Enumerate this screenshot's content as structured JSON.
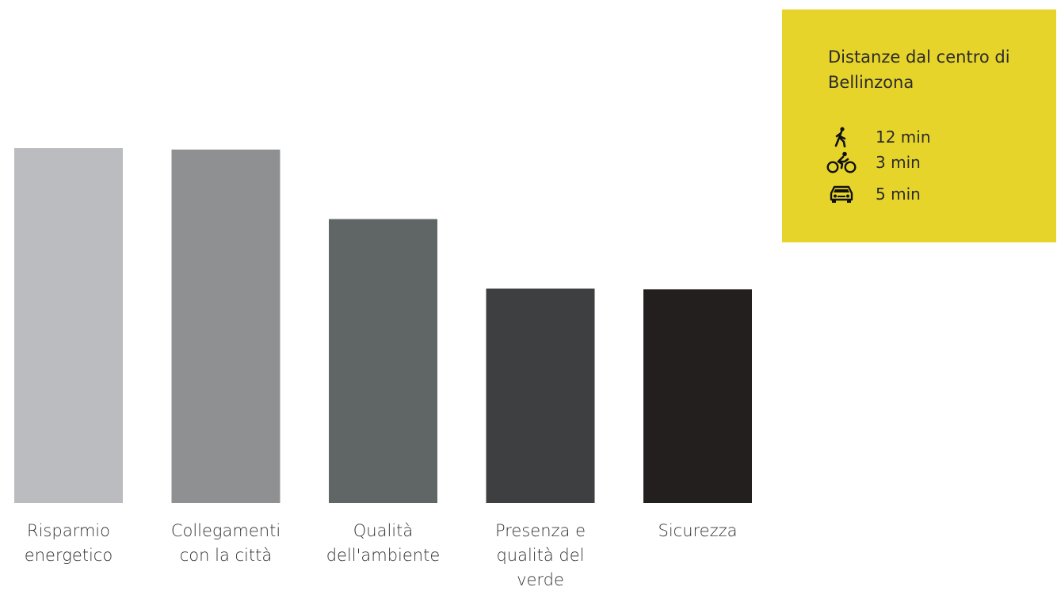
{
  "chart_data": {
    "type": "bar",
    "categories": [
      "Risparmio\nenergetico",
      "Collegamenti\ncon la città",
      "Qualità\ndell'ambiente",
      "Presenza e\nqualità del\nverde",
      "Sicurezza"
    ],
    "values": [
      100,
      99.6,
      80,
      60.4,
      60.2
    ],
    "ylim": [
      0,
      100
    ],
    "colors": [
      "#bbbcc0",
      "#8f9092",
      "#606565",
      "#3e3f40",
      "#231f1f"
    ],
    "title": "",
    "xlabel": "",
    "ylabel": "",
    "grid": false
  },
  "info": {
    "title": "Distanze dal centro di Bellinzona",
    "background": "#e6d42b",
    "rows": [
      {
        "icon": "walking-icon",
        "value": "12 min"
      },
      {
        "icon": "bicycle-icon",
        "value": "3 min"
      },
      {
        "icon": "car-icon",
        "value": "5 min"
      }
    ]
  }
}
